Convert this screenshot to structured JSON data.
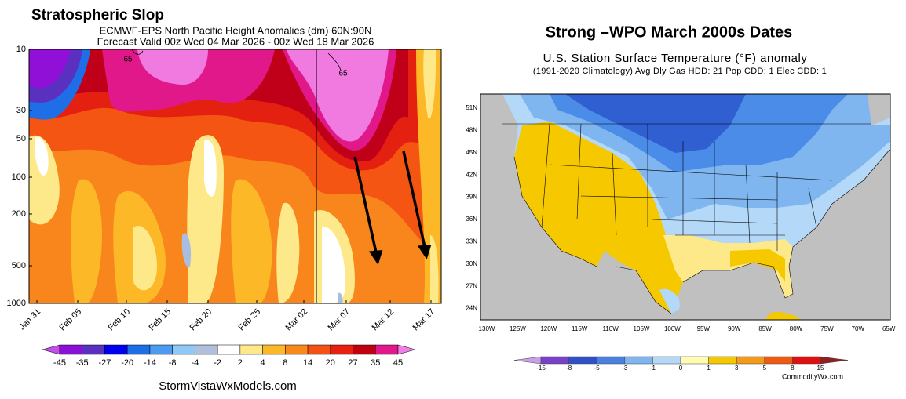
{
  "left_panel": {
    "title": "Stratospheric Slop",
    "subtitle_lines": [
      "ECMWF-EPS North Pacific Height Anomalies (dm) 60N:90N",
      "Forecast Valid 00z Wed 04 Mar 2026 - 00z Wed 18 Mar 2026"
    ],
    "y_axis_labels": [
      "10",
      "30",
      "50",
      "100",
      "200",
      "500",
      "1000"
    ],
    "x_axis_labels": [
      "Jan 31",
      "Feb 05",
      "Feb 10",
      "Feb 15",
      "Feb 20",
      "Feb 25",
      "Mar 02",
      "Mar 07",
      "Mar 12",
      "Mar 17"
    ],
    "contour_labels": [
      "65",
      "65"
    ],
    "colorbar_labels": [
      "-45",
      "-35",
      "-27",
      "-20",
      "-14",
      "-8",
      "-4",
      "-2",
      "2",
      "4",
      "8",
      "14",
      "20",
      "27",
      "35",
      "45"
    ],
    "footer": "StormVistaWxModels.com"
  },
  "right_panel": {
    "title": "Strong –WPO March 2000s Dates",
    "subtitle": "U.S. Station Surface Temperature (°F) anomaly",
    "info_line": "(1991-2020 Climatology) Avg Dly Gas HDD: 21 Pop CDD: 1 Elec CDD: 1",
    "latitude_labels": [
      "51N",
      "48N",
      "45N",
      "42N",
      "39N",
      "36N",
      "33N",
      "30N",
      "27N",
      "24N"
    ],
    "longitude_labels": [
      "130W",
      "125W",
      "120W",
      "115W",
      "110W",
      "105W",
      "100W",
      "95W",
      "90W",
      "85W",
      "80W",
      "75W",
      "70W",
      "65W"
    ],
    "colorbar_labels": [
      "-15",
      "-8",
      "-5",
      "-3",
      "-1",
      "0",
      "1",
      "3",
      "5",
      "8",
      "15"
    ],
    "credit": "CommodityWx.com"
  }
}
